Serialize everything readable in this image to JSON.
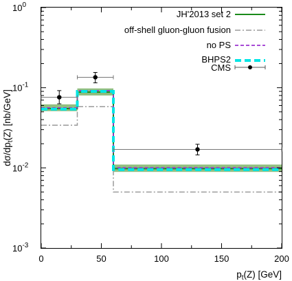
{
  "chart_data": {
    "type": "line",
    "x_axis": {
      "label_main": "p",
      "label_sub": "t",
      "label_rest": "(Z) [GeV]",
      "range": [
        0,
        200
      ],
      "ticks": [
        0,
        50,
        100,
        150,
        200
      ]
    },
    "y_axis": {
      "label_main": "dσ/dp",
      "label_sub": "t",
      "label_rest": "(Z) [nb/GeV]",
      "scale": "log",
      "range": [
        0.001,
        1
      ],
      "ticks": [
        {
          "value": 0.001,
          "base": "10",
          "exp": "-3"
        },
        {
          "value": 0.01,
          "base": "10",
          "exp": "-2"
        },
        {
          "value": 0.1,
          "base": "10",
          "exp": "-1"
        },
        {
          "value": 1,
          "base": "10",
          "exp": "0"
        }
      ]
    },
    "bin_edges": [
      0,
      30,
      60,
      200
    ],
    "series": [
      {
        "name": "JH'2013 set 2",
        "kind": "hist",
        "color": "#1a8a1a",
        "dash": "solid",
        "values": [
          0.055,
          0.088,
          0.0098
        ],
        "band": {
          "color": "#7fb46a",
          "low": [
            0.051,
            0.08,
            0.0089
          ],
          "high": [
            0.062,
            0.098,
            0.011
          ]
        }
      },
      {
        "name": "off-shell gluon-gluon fusion",
        "kind": "hist",
        "color": "#9a9a9a",
        "dash": "dashdot",
        "values": [
          0.034,
          0.058,
          0.005
        ]
      },
      {
        "name": "no PS",
        "kind": "hist",
        "color": "#9b30d0",
        "dash": "dash",
        "values": [
          0.056,
          0.092,
          0.01
        ]
      },
      {
        "name": "BHPS2",
        "kind": "hist",
        "color": "#00e5e5",
        "dash": "thickdash",
        "values": [
          0.054,
          0.09,
          0.0095
        ]
      },
      {
        "name": "CMS",
        "kind": "points",
        "color": "#000000",
        "points": [
          {
            "x": 15,
            "y": 0.076,
            "xerr": [
              0,
              30
            ],
            "yerr": [
              0.063,
              0.092
            ]
          },
          {
            "x": 45,
            "y": 0.135,
            "xerr": [
              30,
              60
            ],
            "yerr": [
              0.115,
              0.155
            ]
          },
          {
            "x": 130,
            "y": 0.017,
            "xerr": [
              60,
              200
            ],
            "yerr": [
              0.0145,
              0.0197
            ]
          }
        ]
      }
    ],
    "legend_position": "top-right",
    "grid": false
  }
}
